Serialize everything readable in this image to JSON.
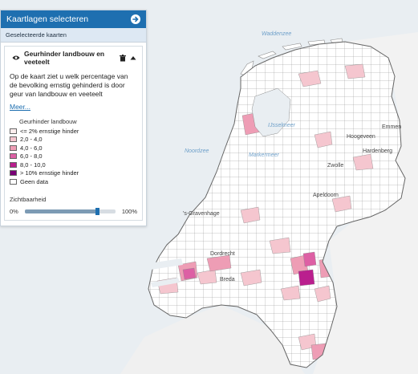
{
  "panel": {
    "header_title": "Kaartlagen selecteren",
    "subheader": "Geselecteerde kaarten",
    "layer": {
      "title": "Geurhinder landbouw en veeteelt",
      "description": "Op de kaart ziet u welk percentage van de bevolking ernstig gehinderd is door geur van landbouw en veeteelt",
      "more_link": "Meer...",
      "legend_title": "Geurhinder landbouw",
      "legend": [
        {
          "label": "<= 2% ernstige hinder",
          "color": "#fdeeee"
        },
        {
          "label": "2,0 - 4,0",
          "color": "#f5c6cf"
        },
        {
          "label": "4,0 - 6,0",
          "color": "#ee9db5"
        },
        {
          "label": "6,0 - 8,0",
          "color": "#dd5fa4"
        },
        {
          "label": "8,0 - 10,0",
          "color": "#ba1f8e"
        },
        {
          "label": "> 10% ernstige hinder",
          "color": "#7a0177"
        },
        {
          "label": "Geen data",
          "color": "#ffffff"
        }
      ],
      "visibility": {
        "title": "Zichtbaarheid",
        "min_label": "0%",
        "max_label": "100%",
        "value": 0.8
      }
    }
  },
  "map": {
    "labels": [
      {
        "text": "Waddenzee",
        "kind": "water"
      },
      {
        "text": "IJsselmeer",
        "kind": "water"
      },
      {
        "text": "Noordzee",
        "kind": "water"
      },
      {
        "text": "Markermeer",
        "kind": "water"
      },
      {
        "text": "Emmen",
        "kind": "city"
      },
      {
        "text": "Hoogeveen",
        "kind": "city"
      },
      {
        "text": "Hardenberg",
        "kind": "city"
      },
      {
        "text": "Apeldoorn",
        "kind": "city"
      },
      {
        "text": "'s-Gravenhage",
        "kind": "city"
      },
      {
        "text": "Dordrecht",
        "kind": "city"
      },
      {
        "text": "Breda",
        "kind": "city"
      },
      {
        "text": "Zwolle",
        "kind": "city"
      }
    ]
  }
}
